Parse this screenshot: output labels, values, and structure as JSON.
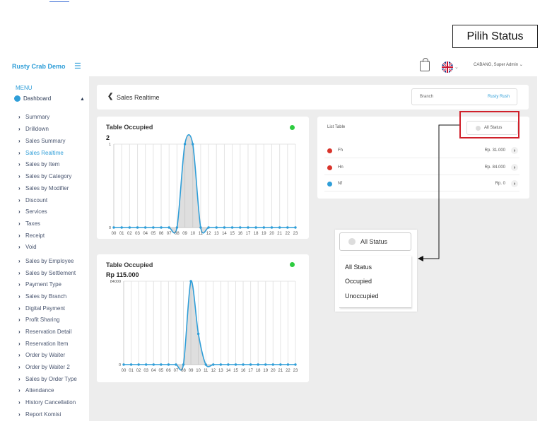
{
  "callout": {
    "label": "Pilih Status"
  },
  "sidebar": {
    "brand": "Rusty Crab Demo",
    "menu_label": "MENU",
    "dashboard_label": "Dashboard",
    "items": [
      {
        "label": "Summary"
      },
      {
        "label": "Drilldown"
      },
      {
        "label": "Sales Summary"
      },
      {
        "label": "Sales Realtime",
        "active": true
      },
      {
        "label": "Sales by Item"
      },
      {
        "label": "Sales by Category"
      },
      {
        "label": "Sales by Modifier"
      },
      {
        "label": "Discount"
      },
      {
        "label": "Services"
      },
      {
        "label": "Taxes"
      },
      {
        "label": "Receipt"
      },
      {
        "label": "Void"
      },
      {
        "label": "Sales by Employee"
      },
      {
        "label": "Sales by Settlement"
      },
      {
        "label": "Payment Type"
      },
      {
        "label": "Sales by Branch"
      },
      {
        "label": "Digital Payment"
      },
      {
        "label": "Profit Sharing"
      },
      {
        "label": "Reservation Detail"
      },
      {
        "label": "Reservation Item"
      },
      {
        "label": "Order by Waiter"
      },
      {
        "label": "Order by Waiter 2"
      },
      {
        "label": "Sales by Order Type"
      },
      {
        "label": "Attendance"
      },
      {
        "label": "History Cancellation"
      },
      {
        "label": "Report Komisi"
      }
    ]
  },
  "topbar": {
    "user": "CABANG, Super Admin"
  },
  "header": {
    "title": "Sales Realtime",
    "branch_label": "Branch",
    "branch_value": "Rusty Rush"
  },
  "list": {
    "title": "List Table",
    "status_filter": "All Status",
    "rows": [
      {
        "name": "Fh",
        "price": "Rp. 31.000",
        "color": "#d9342b"
      },
      {
        "name": "Hn",
        "price": "Rp. 84.000",
        "color": "#d9342b"
      },
      {
        "name": "Nf",
        "price": "Rp. 0",
        "color": "#2f9ed8"
      }
    ]
  },
  "dropdown": {
    "selected": "All Status",
    "options": [
      "All Status",
      "Occupied",
      "Unoccupied"
    ]
  },
  "chart_data": [
    {
      "type": "area",
      "title": "Table Occupied",
      "value_label": "2",
      "x": [
        "00",
        "01",
        "02",
        "03",
        "04",
        "05",
        "06",
        "07",
        "08",
        "09",
        "10",
        "11",
        "12",
        "13",
        "14",
        "15",
        "16",
        "17",
        "18",
        "19",
        "20",
        "21",
        "22",
        "23"
      ],
      "values": [
        0,
        0,
        0,
        0,
        0,
        0,
        0,
        0,
        0,
        1,
        1,
        0,
        0,
        0,
        0,
        0,
        0,
        0,
        0,
        0,
        0,
        0,
        0,
        0
      ],
      "ylim": [
        0,
        1
      ],
      "yticks": [
        "1",
        "0"
      ],
      "grid": true,
      "color": "#2f9ed8"
    },
    {
      "type": "area",
      "title": "Table Occupied",
      "value_label": "Rp 115.000",
      "x": [
        "00",
        "01",
        "02",
        "03",
        "04",
        "05",
        "06",
        "07",
        "08",
        "09",
        "10",
        "11",
        "12",
        "13",
        "14",
        "15",
        "16",
        "17",
        "18",
        "19",
        "20",
        "21",
        "22",
        "23"
      ],
      "values": [
        0,
        0,
        0,
        0,
        0,
        0,
        0,
        0,
        0,
        84000,
        31000,
        0,
        0,
        0,
        0,
        0,
        0,
        0,
        0,
        0,
        0,
        0,
        0,
        0
      ],
      "ylim": [
        0,
        84000
      ],
      "yticks": [
        "84000",
        "0"
      ],
      "grid": true,
      "color": "#2f9ed8"
    }
  ]
}
